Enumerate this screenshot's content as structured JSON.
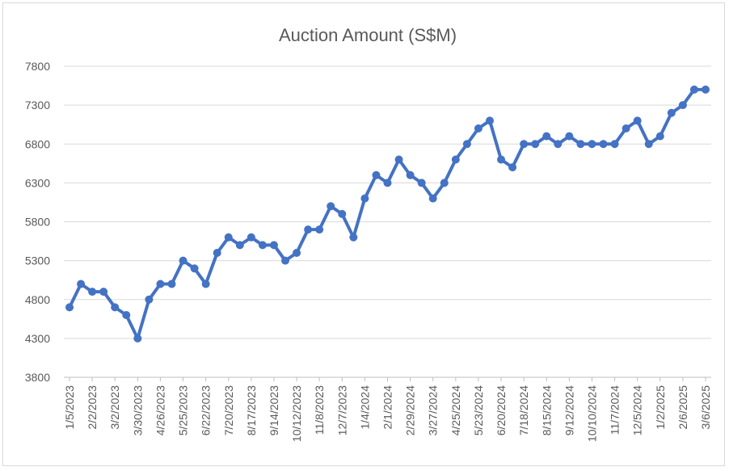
{
  "chart_data": {
    "type": "line",
    "title": "Auction Amount (S$M)",
    "xlabel": "",
    "ylabel": "",
    "ylim": [
      3800,
      7800
    ],
    "yticks": [
      3800,
      4300,
      4800,
      5300,
      5800,
      6300,
      6800,
      7300,
      7800
    ],
    "grid": true,
    "legend": "none",
    "line_color": "#4472c4",
    "x_tick_labels": [
      "1/5/2023",
      "2/2/2023",
      "3/2/2023",
      "3/30/2023",
      "4/26/2023",
      "5/25/2023",
      "6/22/2023",
      "7/20/2023",
      "8/17/2023",
      "9/14/2023",
      "10/12/2023",
      "11/8/2023",
      "12/7/2023",
      "1/4/2024",
      "2/1/2024",
      "2/29/2024",
      "3/27/2024",
      "4/25/2024",
      "5/23/2024",
      "6/20/2024",
      "7/18/2024",
      "8/15/2024",
      "9/12/2024",
      "10/10/2024",
      "11/7/2024",
      "12/5/2024",
      "1/2/2025",
      "2/6/2025",
      "3/6/2025"
    ],
    "series": [
      {
        "values": [
          4700,
          5000,
          4900,
          4900,
          4700,
          4600,
          4300,
          4800,
          5000,
          5000,
          5300,
          5200,
          5000,
          5400,
          5600,
          5500,
          5600,
          5500,
          5500,
          5300,
          5400,
          5700,
          5700,
          6000,
          5900,
          5600,
          6100,
          6400,
          6300,
          6600,
          6400,
          6300,
          6100,
          6300,
          6600,
          6800,
          7000,
          7100,
          6600,
          6500,
          6800,
          6800,
          6900,
          6800,
          6900,
          6800,
          6800,
          6800,
          6800,
          7000,
          7100,
          6800,
          6900,
          7200,
          7300,
          7500,
          7500
        ]
      }
    ]
  }
}
